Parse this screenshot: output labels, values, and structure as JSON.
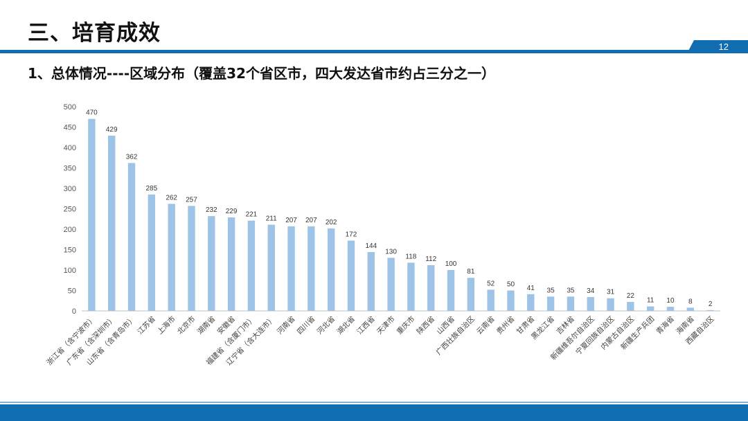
{
  "slide": {
    "title": "三、培育成效",
    "page_number": "12",
    "subtitle": "1、总体情况----区域分布（覆盖32个省区市，四大发达省市约占三分之一）"
  },
  "colors": {
    "bar": "#9dc3e6",
    "accent": "#0f6db0"
  },
  "chart_data": {
    "type": "bar",
    "title": "",
    "xlabel": "",
    "ylabel": "",
    "ylim": [
      0,
      500
    ],
    "yticks": [
      0,
      50,
      100,
      150,
      200,
      250,
      300,
      350,
      400,
      450,
      500
    ],
    "grid": false,
    "categories": [
      "浙江省（含宁波市）",
      "广东省（含深圳市）",
      "山东省（含青岛市）",
      "江苏省",
      "上海市",
      "北京市",
      "湖南省",
      "安徽省",
      "福建省（含厦门市）",
      "辽宁省（含大连市）",
      "河南省",
      "四川省",
      "河北省",
      "湖北省",
      "江西省",
      "天津市",
      "重庆市",
      "陕西省",
      "山西省",
      "广西壮族自治区",
      "云南省",
      "贵州省",
      "甘肃省",
      "黑龙江省",
      "吉林省",
      "新疆维吾尔自治区",
      "宁夏回族自治区",
      "内蒙古自治区",
      "新疆生产兵团",
      "青海省",
      "海南省",
      "西藏自治区"
    ],
    "values": [
      470,
      429,
      362,
      285,
      262,
      257,
      232,
      229,
      221,
      211,
      207,
      207,
      202,
      172,
      144,
      130,
      118,
      112,
      100,
      81,
      52,
      50,
      41,
      35,
      35,
      34,
      31,
      22,
      11,
      10,
      8,
      2
    ]
  }
}
